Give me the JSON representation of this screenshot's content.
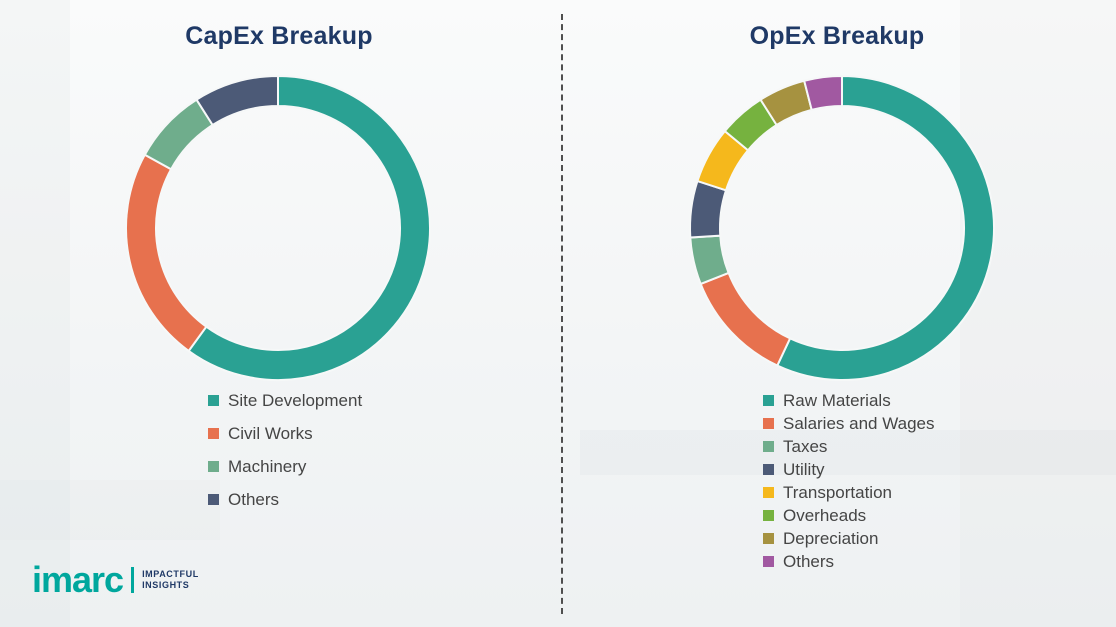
{
  "divider": {
    "style": "dashed-vertical"
  },
  "logo": {
    "brand": "imarc",
    "tagline_line1": "IMPACTFUL",
    "tagline_line2": "INSIGHTS",
    "brand_color": "#00a79d",
    "tagline_color": "#1f3966"
  },
  "title_color": "#1f3966",
  "chart_data": [
    {
      "type": "pie",
      "subtype": "donut",
      "title": "CapEx Breakup",
      "labels": [
        "Site Development",
        "Civil Works",
        "Machinery",
        "Others"
      ],
      "values": [
        60,
        23,
        8,
        9
      ],
      "colors": [
        "#2aa193",
        "#e7714e",
        "#6fad8c",
        "#4c5a77"
      ],
      "legend_position": "below-left",
      "start_angle_deg": 0,
      "direction": "clockwise"
    },
    {
      "type": "pie",
      "subtype": "donut",
      "title": "OpEx Breakup",
      "labels": [
        "Raw Materials",
        "Salaries and Wages",
        "Taxes",
        "Utility",
        "Transportation",
        "Overheads",
        "Depreciation",
        "Others"
      ],
      "values": [
        57,
        12,
        5,
        6,
        6,
        5,
        5,
        4
      ],
      "colors": [
        "#2aa193",
        "#e7714e",
        "#6fad8c",
        "#4c5a77",
        "#f5b81c",
        "#76b23f",
        "#a69240",
        "#a159a1"
      ],
      "legend_position": "below-left",
      "start_angle_deg": 0,
      "direction": "clockwise"
    }
  ]
}
